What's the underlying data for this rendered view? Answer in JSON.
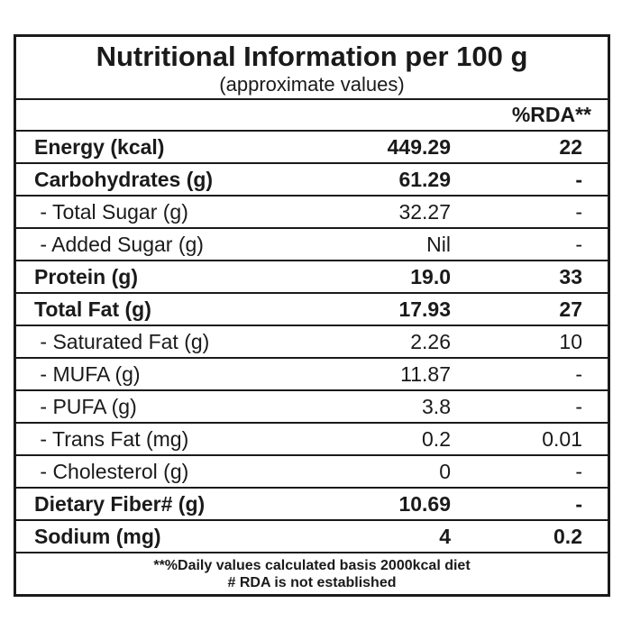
{
  "header": {
    "title": "Nutritional Information per 100 g",
    "subtitle": "(approximate values)"
  },
  "table": {
    "columns": [
      "%RDA**"
    ],
    "rows": [
      {
        "label": "Energy (kcal)",
        "value": "449.29",
        "rda": "22",
        "bold": true
      },
      {
        "label": "Carbohydrates (g)",
        "value": "61.29",
        "rda": "-",
        "bold": true
      },
      {
        "label": " - Total Sugar (g)",
        "value": "32.27",
        "rda": "-",
        "bold": false
      },
      {
        "label": " - Added Sugar (g)",
        "value": "Nil",
        "rda": "-",
        "bold": false
      },
      {
        "label": "Protein (g)",
        "value": "19.0",
        "rda": "33",
        "bold": true
      },
      {
        "label": "Total Fat (g)",
        "value": "17.93",
        "rda": "27",
        "bold": true
      },
      {
        "label": " - Saturated Fat (g)",
        "value": "2.26",
        "rda": "10",
        "bold": false
      },
      {
        "label": " - MUFA (g)",
        "value": "11.87",
        "rda": "-",
        "bold": false
      },
      {
        "label": " - PUFA (g)",
        "value": "3.8",
        "rda": "-",
        "bold": false
      },
      {
        "label": " - Trans Fat (mg)",
        "value": "0.2",
        "rda": "0.01",
        "bold": false
      },
      {
        "label": " - Cholesterol (g)",
        "value": "0",
        "rda": "-",
        "bold": false
      },
      {
        "label": "Dietary Fiber# (g)",
        "value": "10.69",
        "rda": "-",
        "bold": true
      },
      {
        "label": "Sodium (mg)",
        "value": "4",
        "rda": "0.2",
        "bold": true
      }
    ]
  },
  "footer": {
    "notes": [
      "**%Daily values calculated basis 2000kcal diet",
      "# RDA is not established"
    ]
  }
}
